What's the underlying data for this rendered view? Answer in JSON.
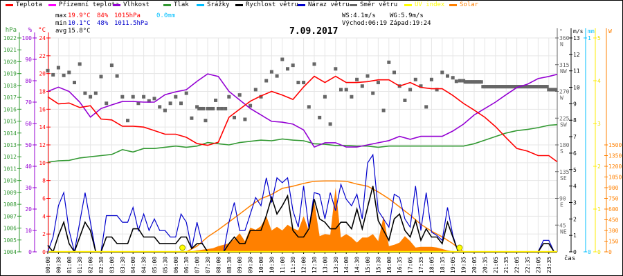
{
  "legend": [
    {
      "label": "Teplota",
      "color": "#ff0000"
    },
    {
      "label": "Přízemní teplota",
      "color": "#ff00ff"
    },
    {
      "label": "Vlhkost",
      "color": "#9400d3"
    },
    {
      "label": "Tlak",
      "color": "#339933"
    },
    {
      "label": "Srážky",
      "color": "#00bfff"
    },
    {
      "label": "Rychlost větru",
      "color": "#000000"
    },
    {
      "label": "Náraz větru",
      "color": "#0000cc"
    },
    {
      "label": "Směr větru",
      "color": "#666666"
    },
    {
      "label": "UV index",
      "color": "#ffff00"
    },
    {
      "label": "Solar",
      "color": "#ff8000"
    }
  ],
  "stats": {
    "max_label": "max",
    "max_temp": "19.9°C",
    "max_hum": "84%",
    "max_press": "1015hPa",
    "rain": "0.0mm",
    "min_label": "min",
    "min_temp": "10.1°C",
    "min_hum": "48%",
    "min_press": "1011.5hPa",
    "avg_label": "avg",
    "avg_temp": "15.8°C",
    "ws": "WS:4.1m/s",
    "wg": "WG:5.9m/s",
    "sunrise": "Východ:06:19",
    "sunset": "Západ:19:24"
  },
  "chart_data": {
    "type": "line",
    "title": "7.09.2017",
    "xlabel": "čas",
    "grid": true,
    "x_ticks": [
      "00:00",
      "00:30",
      "01:00",
      "01:30",
      "02:00",
      "02:30",
      "03:00",
      "03:30",
      "04:00",
      "04:30",
      "05:00",
      "05:30",
      "06:00",
      "06:30",
      "07:00",
      "07:30",
      "08:00",
      "08:30",
      "09:00",
      "09:30",
      "10:00",
      "10:30",
      "11:00",
      "11:30",
      "12:00",
      "12:30",
      "13:00",
      "13:30",
      "14:00",
      "14:30",
      "15:00",
      "15:30",
      "16:00",
      "16:35",
      "17:05",
      "17:35",
      "18:05",
      "18:35",
      "19:05",
      "19:35",
      "20:05",
      "20:35",
      "21:05",
      "21:35",
      "22:05",
      "22:35",
      "23:05",
      "23:35"
    ],
    "axes": {
      "hPa": {
        "title": "hPa",
        "range": [
          1004,
          1022
        ],
        "ticks": [
          1004,
          1005,
          1006,
          1007,
          1008,
          1009,
          1010,
          1011,
          1012,
          1013,
          1014,
          1015,
          1016,
          1017,
          1018,
          1019,
          1020,
          1021,
          1022
        ],
        "color": "#339933"
      },
      "pct": {
        "title": "%",
        "range": [
          0,
          100
        ],
        "ticks": [
          0,
          10,
          20,
          30,
          40,
          50,
          60,
          70,
          80,
          90,
          100
        ],
        "color": "#9400d3"
      },
      "C": {
        "title": "°C",
        "range": [
          0,
          24
        ],
        "ticks": [
          0,
          2,
          4,
          6,
          8,
          10,
          12,
          14,
          16,
          18,
          20,
          22,
          24
        ],
        "color": "#ff0000"
      },
      "deg": {
        "title": "°",
        "range": [
          0,
          360
        ],
        "ticks": [
          45,
          90,
          135,
          180,
          225,
          270,
          315,
          360
        ],
        "tick_names": [
          "NE",
          "E",
          "SE",
          "S",
          "SW",
          "W",
          "NW",
          "N"
        ],
        "color": "#666666"
      },
      "ms": {
        "title": "m/s",
        "range": [
          0,
          13
        ],
        "ticks": [
          0,
          1,
          2,
          3,
          4,
          5,
          6,
          7,
          8,
          9,
          10,
          11,
          12,
          13
        ],
        "color": "#000000"
      },
      "mm": {
        "title": "mm",
        "range": [
          0,
          1
        ],
        "ticks": [
          0,
          1
        ],
        "color": "#00bfff"
      },
      "uv": {
        "title": "",
        "range": [
          0,
          5
        ],
        "ticks": [
          0,
          1,
          2,
          3,
          4,
          5
        ],
        "color": "#ffff00"
      },
      "W": {
        "title": "W",
        "range": [
          0,
          1500
        ],
        "ticks": [
          0,
          150,
          300,
          450,
          600,
          750,
          900,
          1050,
          1200,
          1350,
          1500
        ],
        "color": "#ff8000"
      }
    },
    "series": [
      {
        "name": "Teplota",
        "axis": "C",
        "color": "#ff0000",
        "values": [
          17.4,
          16.6,
          16.7,
          16.2,
          16.4,
          14.9,
          14.8,
          14.1,
          14.1,
          14.0,
          13.6,
          13.2,
          13.2,
          12.85,
          12.15,
          11.95,
          12.3,
          15.1,
          16.0,
          16.9,
          17.5,
          18.0,
          17.6,
          17.1,
          18.5,
          19.7,
          19.0,
          19.7,
          19.0,
          19.0,
          19.1,
          19.3,
          19.3,
          18.6,
          19.0,
          18.45,
          18.3,
          18.3,
          17.55,
          16.65,
          15.9,
          15.1,
          14.05,
          12.8,
          11.6,
          11.3,
          10.8,
          10.8,
          10.1
        ]
      },
      {
        "name": "Vlhkost",
        "axis": "pct",
        "color": "#9400d3",
        "values": [
          75,
          77,
          75,
          70,
          63,
          67,
          68.7,
          70.3,
          70.3,
          70,
          70,
          73.5,
          74.8,
          75.8,
          79.7,
          83.2,
          82,
          75,
          71,
          67,
          64,
          61,
          60.6,
          59.7,
          57,
          49,
          51,
          51,
          49,
          49,
          50,
          51,
          52,
          54,
          52.6,
          54,
          54,
          54,
          56.5,
          59.7,
          64,
          67,
          70,
          73.5,
          76.8,
          78.4,
          81,
          82,
          83
        ]
      },
      {
        "name": "Tlak",
        "axis": "hPa",
        "color": "#339933",
        "values": [
          1011.55,
          1011.66,
          1011.7,
          1011.9,
          1012.0,
          1012.1,
          1012.2,
          1012.6,
          1012.4,
          1012.7,
          1012.7,
          1012.8,
          1012.9,
          1012.8,
          1012.9,
          1013.2,
          1013.1,
          1013.0,
          1013.2,
          1013.3,
          1013.4,
          1013.35,
          1013.5,
          1013.4,
          1013.35,
          1013.1,
          1013.05,
          1012.95,
          1012.95,
          1012.9,
          1012.9,
          1012.8,
          1012.9,
          1012.9,
          1012.9,
          1012.9,
          1012.9,
          1012.9,
          1012.9,
          1012.9,
          1013.1,
          1013.4,
          1013.7,
          1014.0,
          1014.2,
          1014.3,
          1014.45,
          1014.65,
          1014.7
        ]
      },
      {
        "name": "Srážky",
        "axis": "mm",
        "color": "#00bfff",
        "total": 0.0
      },
      {
        "name": "UV index",
        "axis": "uv",
        "color": "#ffff00",
        "constant": 0
      },
      {
        "name": "Solar",
        "axis": "W",
        "color": "#ff8000",
        "kind": "line",
        "values": [
          0,
          0,
          0,
          0,
          0,
          0,
          0,
          0,
          0,
          0,
          0,
          0,
          0,
          0,
          80,
          210,
          310,
          420,
          530,
          645,
          745,
          805,
          890,
          920,
          960,
          990,
          994,
          994,
          990,
          950,
          920,
          840,
          745,
          630,
          515,
          385,
          290,
          210,
          115,
          0,
          0,
          0,
          0,
          0,
          0,
          0,
          0,
          0,
          0
        ]
      },
      {
        "name": "Solar",
        "axis": "W",
        "color": "#ff8000",
        "kind": "area",
        "resolution": "half",
        "values": [
          0,
          0,
          0,
          0,
          0,
          0,
          0,
          0,
          0,
          0,
          0,
          0,
          0,
          0,
          0,
          0,
          0,
          0,
          0,
          0,
          0,
          0,
          0,
          0,
          0,
          0,
          0,
          10,
          20,
          30,
          40,
          50,
          80,
          100,
          120,
          180,
          260,
          150,
          340,
          310,
          360,
          500,
          300,
          350,
          300,
          380,
          330,
          300,
          500,
          290,
          700,
          220,
          250,
          240,
          900,
          200,
          250,
          200,
          130,
          200,
          200,
          250,
          150,
          500,
          80,
          100,
          130,
          220,
          150,
          60,
          70,
          70,
          70,
          60,
          40,
          20,
          10,
          0,
          0,
          0,
          0,
          0,
          0,
          0,
          0,
          0,
          0,
          0,
          0,
          0,
          0,
          0,
          0,
          0,
          0,
          0
        ]
      },
      {
        "name": "Náraz větru",
        "axis": "ms",
        "color": "#0000cc",
        "resolution": "half",
        "values": [
          0,
          0.9,
          2.8,
          3.6,
          1.3,
          0,
          1.8,
          3.6,
          1.8,
          0,
          0,
          2.2,
          2.2,
          2.2,
          1.8,
          1.8,
          2.7,
          1.3,
          2.3,
          1.3,
          2.0,
          1.3,
          1.3,
          0.9,
          0.9,
          2.3,
          1.8,
          0.2,
          1.8,
          0.5,
          0,
          0,
          0,
          0,
          1.8,
          3.0,
          1.3,
          1.3,
          2.3,
          3.3,
          2.8,
          4.5,
          3.0,
          4.5,
          4.2,
          4.5,
          2.5,
          1.5,
          4.0,
          1.4,
          3.6,
          3.5,
          2.0,
          3.6,
          2.5,
          4.1,
          3.2,
          2.8,
          3.5,
          2.0,
          5.4,
          5.9,
          2.5,
          2.0,
          1.5,
          3.5,
          3.3,
          2.0,
          1.5,
          4.0,
          1.3,
          3.6,
          1.2,
          1.0,
          0.7,
          2.7,
          1.0,
          0,
          0,
          0,
          0,
          0,
          0,
          0,
          0,
          0,
          0,
          0,
          0,
          0,
          0,
          0,
          0,
          0.7,
          0.7,
          0
        ]
      },
      {
        "name": "Rychlost větru",
        "axis": "ms",
        "color": "#000000",
        "resolution": "half",
        "values": [
          0.4,
          0,
          1.0,
          1.8,
          0.5,
          0,
          0.9,
          1.8,
          1.3,
          0,
          0,
          0.9,
          0.9,
          0.5,
          0.5,
          0.5,
          1.4,
          1.4,
          0.9,
          0.9,
          0.9,
          0.5,
          0.5,
          0.5,
          0.5,
          0.9,
          0.9,
          0.2,
          0.5,
          0.5,
          0,
          0,
          0,
          0,
          0.5,
          0.9,
          0.5,
          0.5,
          1.3,
          1.3,
          1.3,
          2.2,
          3.3,
          2.3,
          2.8,
          3.4,
          1.3,
          0.9,
          0.9,
          1.4,
          3.2,
          2.0,
          1.8,
          1.4,
          1.4,
          1.8,
          1.8,
          1.4,
          2.6,
          1.4,
          2.7,
          4.0,
          1.9,
          1.3,
          0.7,
          2.0,
          2.3,
          1.3,
          0.9,
          1.9,
          0.7,
          1.4,
          0.9,
          0.9,
          0.5,
          1.8,
          0.9,
          0,
          0,
          0,
          0,
          0,
          0,
          0,
          0,
          0,
          0,
          0,
          0,
          0,
          0,
          0,
          0,
          0.5,
          0.5,
          0
        ]
      },
      {
        "name": "Směr větru",
        "axis": "deg",
        "color": "#666666",
        "kind": "scatter",
        "values": [
          [
            305,
            298
          ],
          [
            310,
            297
          ],
          [
            302,
            285
          ],
          [
            316,
            267
          ],
          [
            261,
            267
          ],
          [
            295,
            250
          ],
          [
            314,
            296
          ],
          [
            261,
            221
          ],
          [
            261,
            250
          ],
          [
            261,
            254
          ],
          [
            258,
            244
          ],
          [
            238,
            250
          ],
          [
            261,
            250
          ],
          [
            267,
            225
          ],
          [
            244,
            241,
            241,
            241,
            221
          ],
          [
            241,
            241,
            241,
            255
          ],
          [
            241,
            241,
            241
          ],
          [
            261,
            226
          ],
          [
            264,
            223
          ],
          [
            246,
            273
          ],
          [
            261,
            288
          ],
          [
            303,
            296
          ],
          [
            324,
            308
          ],
          [
            314,
            285
          ],
          [
            285,
            244
          ],
          [
            316,
            226
          ],
          [
            261,
            215
          ],
          [
            308,
            273
          ],
          [
            273,
            261
          ],
          [
            290,
            279
          ],
          [
            296,
            267
          ],
          [
            285,
            238
          ],
          [
            319,
            302
          ],
          [
            279,
            255
          ],
          [
            273,
            290
          ],
          [
            279,
            244
          ],
          [
            290,
            273
          ],
          [
            302,
            296
          ],
          [
            293,
            287,
            288
          ],
          [
            288,
            286,
            286,
            286,
            286,
            286
          ],
          [
            286,
            286,
            286,
            286,
            286,
            278
          ],
          [
            278,
            278,
            278,
            278,
            278,
            278
          ],
          [
            278,
            278,
            278,
            278,
            278,
            278
          ],
          [
            278,
            278,
            278,
            278,
            278,
            278
          ],
          [
            278,
            278,
            278,
            278,
            278,
            278
          ],
          [
            278,
            278,
            278,
            278,
            278,
            278
          ],
          [
            278,
            278,
            278,
            278,
            278,
            278
          ],
          [
            273,
            273,
            273,
            273,
            273,
            273
          ]
        ]
      }
    ]
  }
}
